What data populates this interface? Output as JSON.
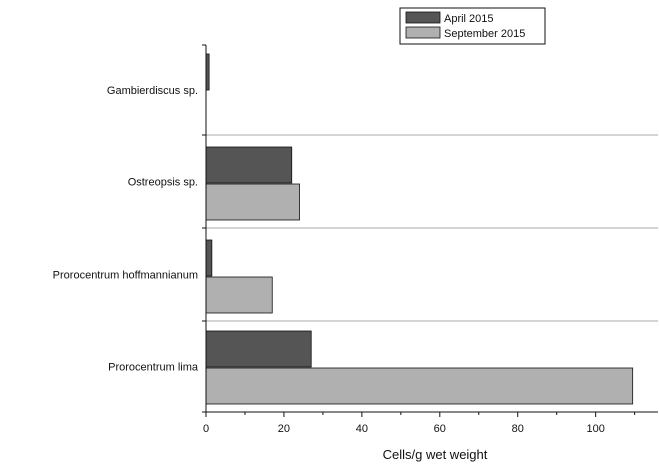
{
  "chart_data": {
    "type": "bar",
    "orientation": "horizontal",
    "categories": [
      "Gambierdiscus sp.",
      "Ostreopsis sp.",
      "Prorocentrum hoffmannianum",
      "Prorocentrum lima"
    ],
    "series": [
      {
        "name": "April 2015",
        "values": [
          0.8,
          22,
          1.5,
          27
        ],
        "color": "#555555"
      },
      {
        "name": "September 2015",
        "values": [
          0,
          24,
          17,
          109.5
        ],
        "color": "#b0b0b0"
      }
    ],
    "xlabel": "Cells/g wet weight",
    "ylabel": "",
    "xlim": [
      0,
      116
    ],
    "xticks": [
      0,
      20,
      40,
      60,
      80,
      100
    ],
    "xtick_labels": [
      "0",
      "20",
      "40",
      "60",
      "80",
      "100"
    ],
    "grid": {
      "category_separators": true
    },
    "legend": {
      "placement": "top-right",
      "entries": [
        "April 2015",
        "September 2015"
      ]
    }
  }
}
